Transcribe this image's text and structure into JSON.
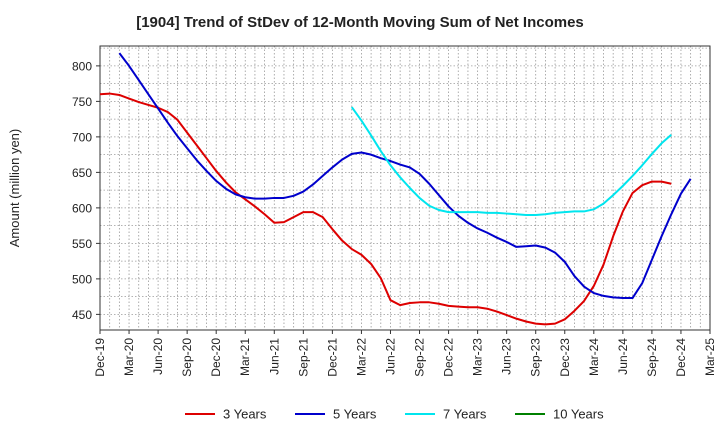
{
  "chart_data": {
    "type": "line",
    "title": "[1904]  Trend of StDev of 12-Month Moving Sum of Net Incomes",
    "xlabel": "",
    "ylabel": "Amount (million yen)",
    "ylim": [
      428,
      828
    ],
    "yticks": [
      450,
      500,
      550,
      600,
      650,
      700,
      750,
      800
    ],
    "xtick_labels": [
      "Dec-19",
      "Mar-20",
      "Jun-20",
      "Sep-20",
      "Dec-20",
      "Mar-21",
      "Jun-21",
      "Sep-21",
      "Dec-21",
      "Mar-22",
      "Jun-22",
      "Sep-22",
      "Dec-22",
      "Mar-23",
      "Jun-23",
      "Sep-23",
      "Dec-23",
      "Mar-24",
      "Jun-24",
      "Sep-24",
      "Dec-24",
      "Mar-25"
    ],
    "grid": true,
    "legend_position": "bottom",
    "series": [
      {
        "name": "3 Years",
        "color": "#dd0000",
        "start_index": 0,
        "values": [
          760,
          761,
          759,
          754,
          749,
          745,
          741,
          735,
          724,
          706,
          688,
          670,
          652,
          636,
          622,
          612,
          602,
          591,
          579,
          580,
          587,
          594,
          594,
          587,
          570,
          554,
          542,
          534,
          521,
          501,
          470,
          463,
          466,
          467,
          467,
          465,
          462,
          461,
          460,
          460,
          458,
          454,
          449,
          444,
          440,
          437,
          436,
          437,
          443,
          455,
          469,
          490,
          520,
          560,
          595,
          621,
          632,
          637,
          637,
          634
        ]
      },
      {
        "name": "5 Years",
        "color": "#0000cc",
        "start_index": 2,
        "values": [
          818,
          800,
          780,
          760,
          740,
          720,
          701,
          684,
          667,
          652,
          638,
          627,
          619,
          615,
          613,
          613,
          614,
          614,
          617,
          623,
          633,
          645,
          657,
          668,
          676,
          678,
          675,
          670,
          666,
          661,
          657,
          648,
          634,
          618,
          602,
          589,
          579,
          571,
          565,
          558,
          552,
          545,
          546,
          547,
          544,
          537,
          524,
          504,
          489,
          480,
          476,
          474,
          473,
          473,
          494,
          527,
          560,
          591,
          620,
          641
        ]
      },
      {
        "name": "7 Years",
        "color": "#00e5ee",
        "start_index": 26,
        "values": [
          742,
          723,
          702,
          680,
          660,
          643,
          628,
          614,
          603,
          597,
          594,
          594,
          594,
          594,
          593,
          593,
          592,
          591,
          590,
          590,
          591,
          593,
          594,
          595,
          595,
          598,
          606,
          618,
          631,
          645,
          660,
          676,
          691,
          703
        ]
      },
      {
        "name": "10 Years",
        "color": "#008000",
        "start_index": 0,
        "values": []
      }
    ]
  }
}
